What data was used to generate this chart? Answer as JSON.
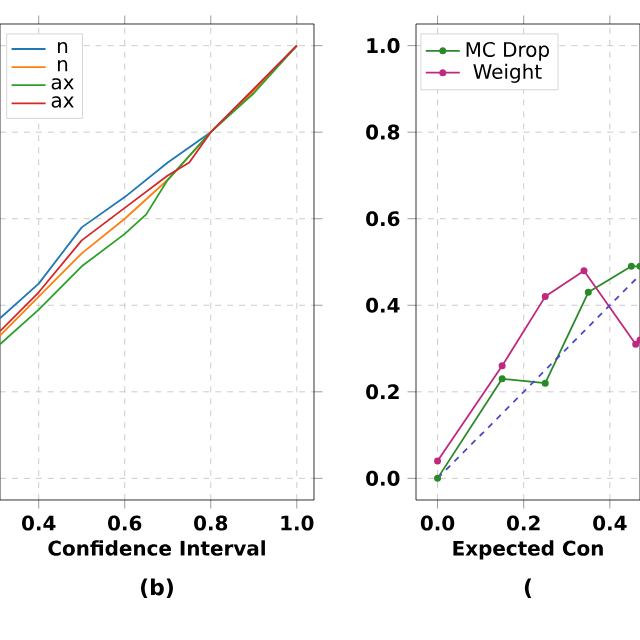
{
  "chart_data": [
    {
      "type": "line",
      "xlabel": "Confidence Interval",
      "annotations": [
        "(b)"
      ],
      "xlim": [
        0.31,
        1.04
      ],
      "ylim": [
        -0.05,
        1.05
      ],
      "xticks": [
        0.4,
        0.6,
        0.8,
        {
          "value": 1.0,
          "label": "1.0"
        }
      ],
      "yticks": [
        {
          "value": 0.0,
          "label": null
        },
        {
          "value": 0.2,
          "label": null
        },
        {
          "value": 0.4,
          "label": null
        },
        {
          "value": 0.6,
          "label": null
        },
        {
          "value": 0.8,
          "label": null
        },
        {
          "value": 1.0,
          "label": null
        }
      ],
      "tick_labels": "x",
      "grid": true,
      "legend": "top left",
      "marker": "none",
      "line_style": "solid",
      "series": [
        {
          "name": "n",
          "color": "#1f77b4",
          "x": [
            0.31,
            0.4,
            0.5,
            0.6,
            0.7,
            0.8,
            0.9,
            1.0
          ],
          "values": [
            0.37,
            0.45,
            0.58,
            0.65,
            0.73,
            0.8,
            0.9,
            1.0
          ]
        },
        {
          "name": "n",
          "color": "#ff7f0e",
          "x": [
            0.31,
            0.4,
            0.5,
            0.6,
            0.7,
            0.8,
            0.9,
            1.0
          ],
          "values": [
            0.33,
            0.42,
            0.52,
            0.6,
            0.69,
            0.8,
            0.895,
            1.0
          ]
        },
        {
          "name": "ax",
          "color": "#2ca02c",
          "x": [
            0.31,
            0.4,
            0.5,
            0.6,
            0.65,
            0.7,
            0.8,
            0.9,
            1.0
          ],
          "values": [
            0.31,
            0.39,
            0.49,
            0.565,
            0.61,
            0.69,
            0.8,
            0.89,
            1.0
          ]
        },
        {
          "name": "ax",
          "color": "#d62728",
          "x": [
            0.31,
            0.4,
            0.5,
            0.6,
            0.7,
            0.75,
            0.8,
            0.9,
            1.0
          ],
          "values": [
            0.34,
            0.43,
            0.55,
            0.625,
            0.7,
            0.73,
            0.8,
            0.9,
            1.0
          ]
        }
      ]
    },
    {
      "type": "line",
      "xlabel": "Expected Con",
      "annotations": [
        "("
      ],
      "xlim": [
        -0.05,
        0.47
      ],
      "ylim": [
        -0.05,
        1.05
      ],
      "xticks": [
        {
          "value": 0.0,
          "label": "0.0"
        },
        0.2,
        0.4
      ],
      "yticks": [
        {
          "value": 0.0,
          "label": "0.0"
        },
        0.2,
        0.4,
        0.6,
        0.8,
        {
          "value": 1.0,
          "label": "1.0"
        }
      ],
      "grid": true,
      "legend": "top left",
      "marker": "circle",
      "series": [
        {
          "name": "MC Drop",
          "color": "#2a8a2a",
          "x": [
            0.0,
            0.15,
            0.25,
            0.35,
            0.45,
            0.47
          ],
          "values": [
            0.0,
            0.23,
            0.22,
            0.43,
            0.49,
            0.49
          ]
        },
        {
          "name": "Weight",
          "color": "#c0287f",
          "x": [
            0.0,
            0.15,
            0.25,
            0.34,
            0.46,
            0.47
          ],
          "values": [
            0.04,
            0.26,
            0.42,
            0.48,
            0.31,
            0.32
          ]
        },
        {
          "color": "#4a4ac8",
          "line_style": "dashed",
          "marker": "none",
          "x": [
            0.0,
            0.47
          ],
          "values": [
            0.0,
            0.47
          ]
        }
      ]
    }
  ]
}
